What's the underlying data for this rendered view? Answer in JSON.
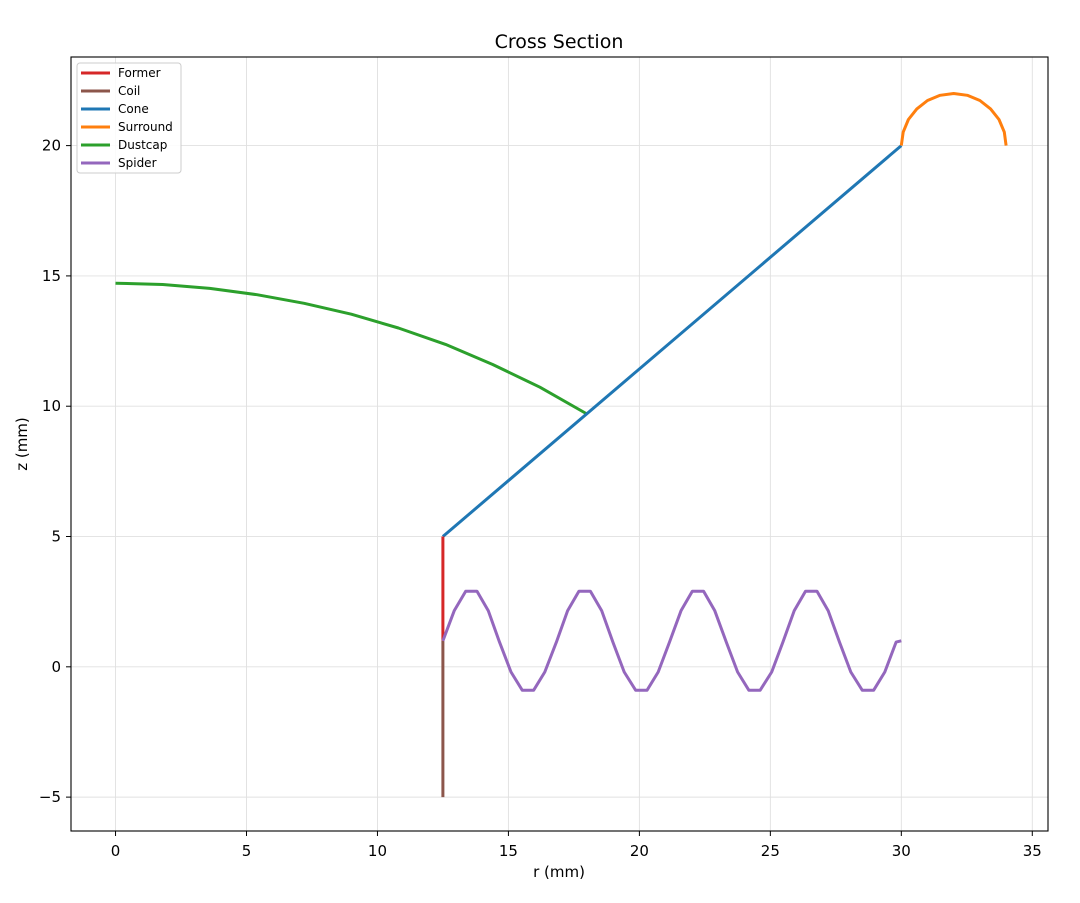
{
  "chart_data": {
    "type": "line",
    "title": "Cross Section",
    "xlabel": "r (mm)",
    "ylabel": "z (mm)",
    "xlim": [
      -1.7,
      35.6
    ],
    "ylim": [
      -6.3,
      23.4
    ],
    "xticks": [
      0,
      5,
      10,
      15,
      20,
      25,
      30,
      35
    ],
    "yticks": [
      -5,
      0,
      5,
      10,
      15,
      20
    ],
    "xtick_labels": [
      "0",
      "5",
      "10",
      "15",
      "20",
      "25",
      "30",
      "35"
    ],
    "ytick_labels": [
      "−5",
      "0",
      "5",
      "10",
      "15",
      "20"
    ],
    "grid": true,
    "legend_position": "top-left",
    "series": [
      {
        "name": "Former",
        "color": "#d62728",
        "x": [
          12.5,
          12.5
        ],
        "y": [
          1.0,
          5.0
        ]
      },
      {
        "name": "Coil",
        "color": "#8c564b",
        "x": [
          12.5,
          12.5
        ],
        "y": [
          -5.0,
          1.0
        ]
      },
      {
        "name": "Cone",
        "color": "#1f77b4",
        "x": [
          12.5,
          30.0
        ],
        "y": [
          5.0,
          20.0
        ]
      },
      {
        "name": "Surround",
        "color": "#ff7f0e",
        "x": [
          30.0,
          30.07,
          30.27,
          30.59,
          31.0,
          31.48,
          32.0,
          32.52,
          33.0,
          33.41,
          33.73,
          33.93,
          34.0
        ],
        "y": [
          20.0,
          20.52,
          21.0,
          21.41,
          21.73,
          21.93,
          22.0,
          21.93,
          21.73,
          21.41,
          21.0,
          20.52,
          20.0
        ]
      },
      {
        "name": "Dustcap",
        "color": "#2ca02c",
        "x": [
          0.0,
          1.8,
          3.6,
          5.4,
          7.2,
          9.0,
          10.8,
          12.6,
          14.4,
          16.2,
          18.0
        ],
        "y": [
          14.72,
          14.67,
          14.52,
          14.28,
          13.95,
          13.53,
          13.0,
          12.37,
          11.6,
          10.73,
          9.7
        ]
      },
      {
        "name": "Spider",
        "color": "#9467bd",
        "x": [
          12.5,
          12.93,
          13.37,
          13.8,
          14.23,
          14.66,
          15.1,
          15.53,
          15.96,
          16.39,
          16.83,
          17.26,
          17.69,
          18.13,
          18.56,
          18.99,
          19.42,
          19.86,
          20.29,
          20.72,
          21.15,
          21.59,
          22.02,
          22.45,
          22.88,
          23.32,
          23.75,
          24.18,
          24.61,
          25.05,
          25.48,
          25.91,
          26.34,
          26.78,
          27.21,
          27.64,
          28.07,
          28.51,
          28.94,
          29.37,
          29.8,
          30.0
        ],
        "y": [
          1.0,
          2.15,
          2.9,
          2.9,
          2.15,
          0.95,
          -0.2,
          -0.9,
          -0.9,
          -0.2,
          0.95,
          2.15,
          2.9,
          2.9,
          2.15,
          0.95,
          -0.2,
          -0.9,
          -0.9,
          -0.2,
          0.95,
          2.15,
          2.9,
          2.9,
          2.15,
          0.95,
          -0.2,
          -0.9,
          -0.9,
          -0.2,
          0.95,
          2.15,
          2.9,
          2.9,
          2.15,
          0.95,
          -0.2,
          -0.9,
          -0.9,
          -0.2,
          0.95,
          1.0
        ]
      }
    ]
  }
}
